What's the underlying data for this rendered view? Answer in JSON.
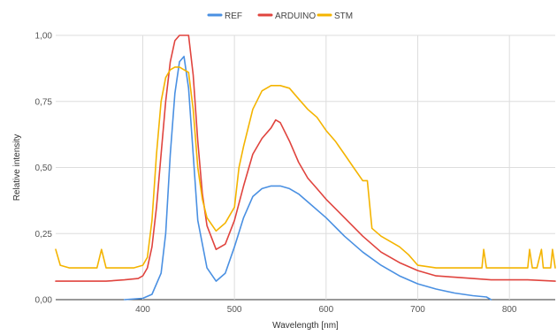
{
  "chart_data": {
    "type": "line",
    "title": "",
    "xlabel": "Wavelength [nm]",
    "ylabel": "Relative intensity",
    "xlim": [
      305,
      850
    ],
    "ylim": [
      0,
      1
    ],
    "x_ticks": [
      {
        "value": 400,
        "label": "400"
      },
      {
        "value": 500,
        "label": "500"
      },
      {
        "value": 600,
        "label": "600"
      },
      {
        "value": 700,
        "label": "700"
      },
      {
        "value": 800,
        "label": "800"
      }
    ],
    "y_ticks": [
      {
        "value": 0,
        "label": "0,00"
      },
      {
        "value": 0.25,
        "label": "0,25"
      },
      {
        "value": 0.5,
        "label": "0,50"
      },
      {
        "value": 0.75,
        "label": "0,75"
      },
      {
        "value": 1,
        "label": "1,00"
      }
    ],
    "grid": true,
    "legend_position": "top-center",
    "series": [
      {
        "name": "REF",
        "color": "#4a90e2",
        "x": [
          380,
          400,
          410,
          420,
          425,
          430,
          435,
          440,
          445,
          450,
          455,
          460,
          470,
          480,
          490,
          500,
          510,
          520,
          530,
          540,
          550,
          560,
          570,
          580,
          600,
          620,
          640,
          660,
          680,
          700,
          720,
          740,
          760,
          775,
          780
        ],
        "y": [
          0.0,
          0.005,
          0.02,
          0.1,
          0.25,
          0.55,
          0.78,
          0.9,
          0.92,
          0.8,
          0.55,
          0.3,
          0.12,
          0.07,
          0.1,
          0.2,
          0.31,
          0.39,
          0.42,
          0.43,
          0.43,
          0.42,
          0.4,
          0.37,
          0.31,
          0.24,
          0.18,
          0.13,
          0.09,
          0.06,
          0.04,
          0.025,
          0.015,
          0.01,
          0.0
        ]
      },
      {
        "name": "ARDUINO",
        "color": "#e0443e",
        "x": [
          305,
          330,
          360,
          380,
          395,
          400,
          405,
          410,
          415,
          420,
          425,
          430,
          435,
          440,
          445,
          450,
          455,
          460,
          465,
          470,
          480,
          490,
          500,
          510,
          520,
          530,
          540,
          545,
          550,
          560,
          570,
          580,
          590,
          600,
          620,
          640,
          660,
          680,
          700,
          720,
          740,
          760,
          780,
          800,
          820,
          850
        ],
        "y": [
          0.07,
          0.07,
          0.07,
          0.075,
          0.08,
          0.09,
          0.12,
          0.2,
          0.35,
          0.55,
          0.75,
          0.9,
          0.98,
          1.0,
          1.0,
          1.0,
          0.85,
          0.6,
          0.4,
          0.28,
          0.19,
          0.21,
          0.3,
          0.43,
          0.55,
          0.61,
          0.65,
          0.68,
          0.67,
          0.6,
          0.52,
          0.46,
          0.42,
          0.38,
          0.31,
          0.24,
          0.18,
          0.14,
          0.11,
          0.09,
          0.085,
          0.08,
          0.075,
          0.075,
          0.075,
          0.07
        ]
      },
      {
        "name": "STM",
        "color": "#f4b400",
        "x": [
          305,
          310,
          320,
          340,
          350,
          355,
          360,
          370,
          390,
          400,
          405,
          410,
          415,
          420,
          425,
          430,
          435,
          440,
          445,
          450,
          455,
          460,
          465,
          470,
          480,
          490,
          495,
          500,
          505,
          510,
          520,
          530,
          540,
          550,
          560,
          570,
          580,
          590,
          600,
          610,
          620,
          630,
          640,
          645,
          650,
          660,
          680,
          690,
          695,
          700,
          720,
          740,
          760,
          770,
          772,
          775,
          780,
          800,
          820,
          822,
          825,
          830,
          835,
          837,
          840,
          845,
          847,
          850
        ],
        "y": [
          0.19,
          0.13,
          0.12,
          0.12,
          0.12,
          0.19,
          0.12,
          0.12,
          0.12,
          0.13,
          0.16,
          0.3,
          0.55,
          0.75,
          0.84,
          0.87,
          0.88,
          0.88,
          0.87,
          0.86,
          0.72,
          0.5,
          0.38,
          0.31,
          0.26,
          0.29,
          0.32,
          0.35,
          0.5,
          0.58,
          0.72,
          0.79,
          0.81,
          0.81,
          0.8,
          0.76,
          0.72,
          0.69,
          0.64,
          0.6,
          0.55,
          0.5,
          0.45,
          0.45,
          0.27,
          0.24,
          0.2,
          0.17,
          0.15,
          0.13,
          0.12,
          0.12,
          0.12,
          0.12,
          0.19,
          0.12,
          0.12,
          0.12,
          0.12,
          0.19,
          0.12,
          0.12,
          0.19,
          0.12,
          0.12,
          0.12,
          0.19,
          0.12
        ]
      }
    ]
  }
}
